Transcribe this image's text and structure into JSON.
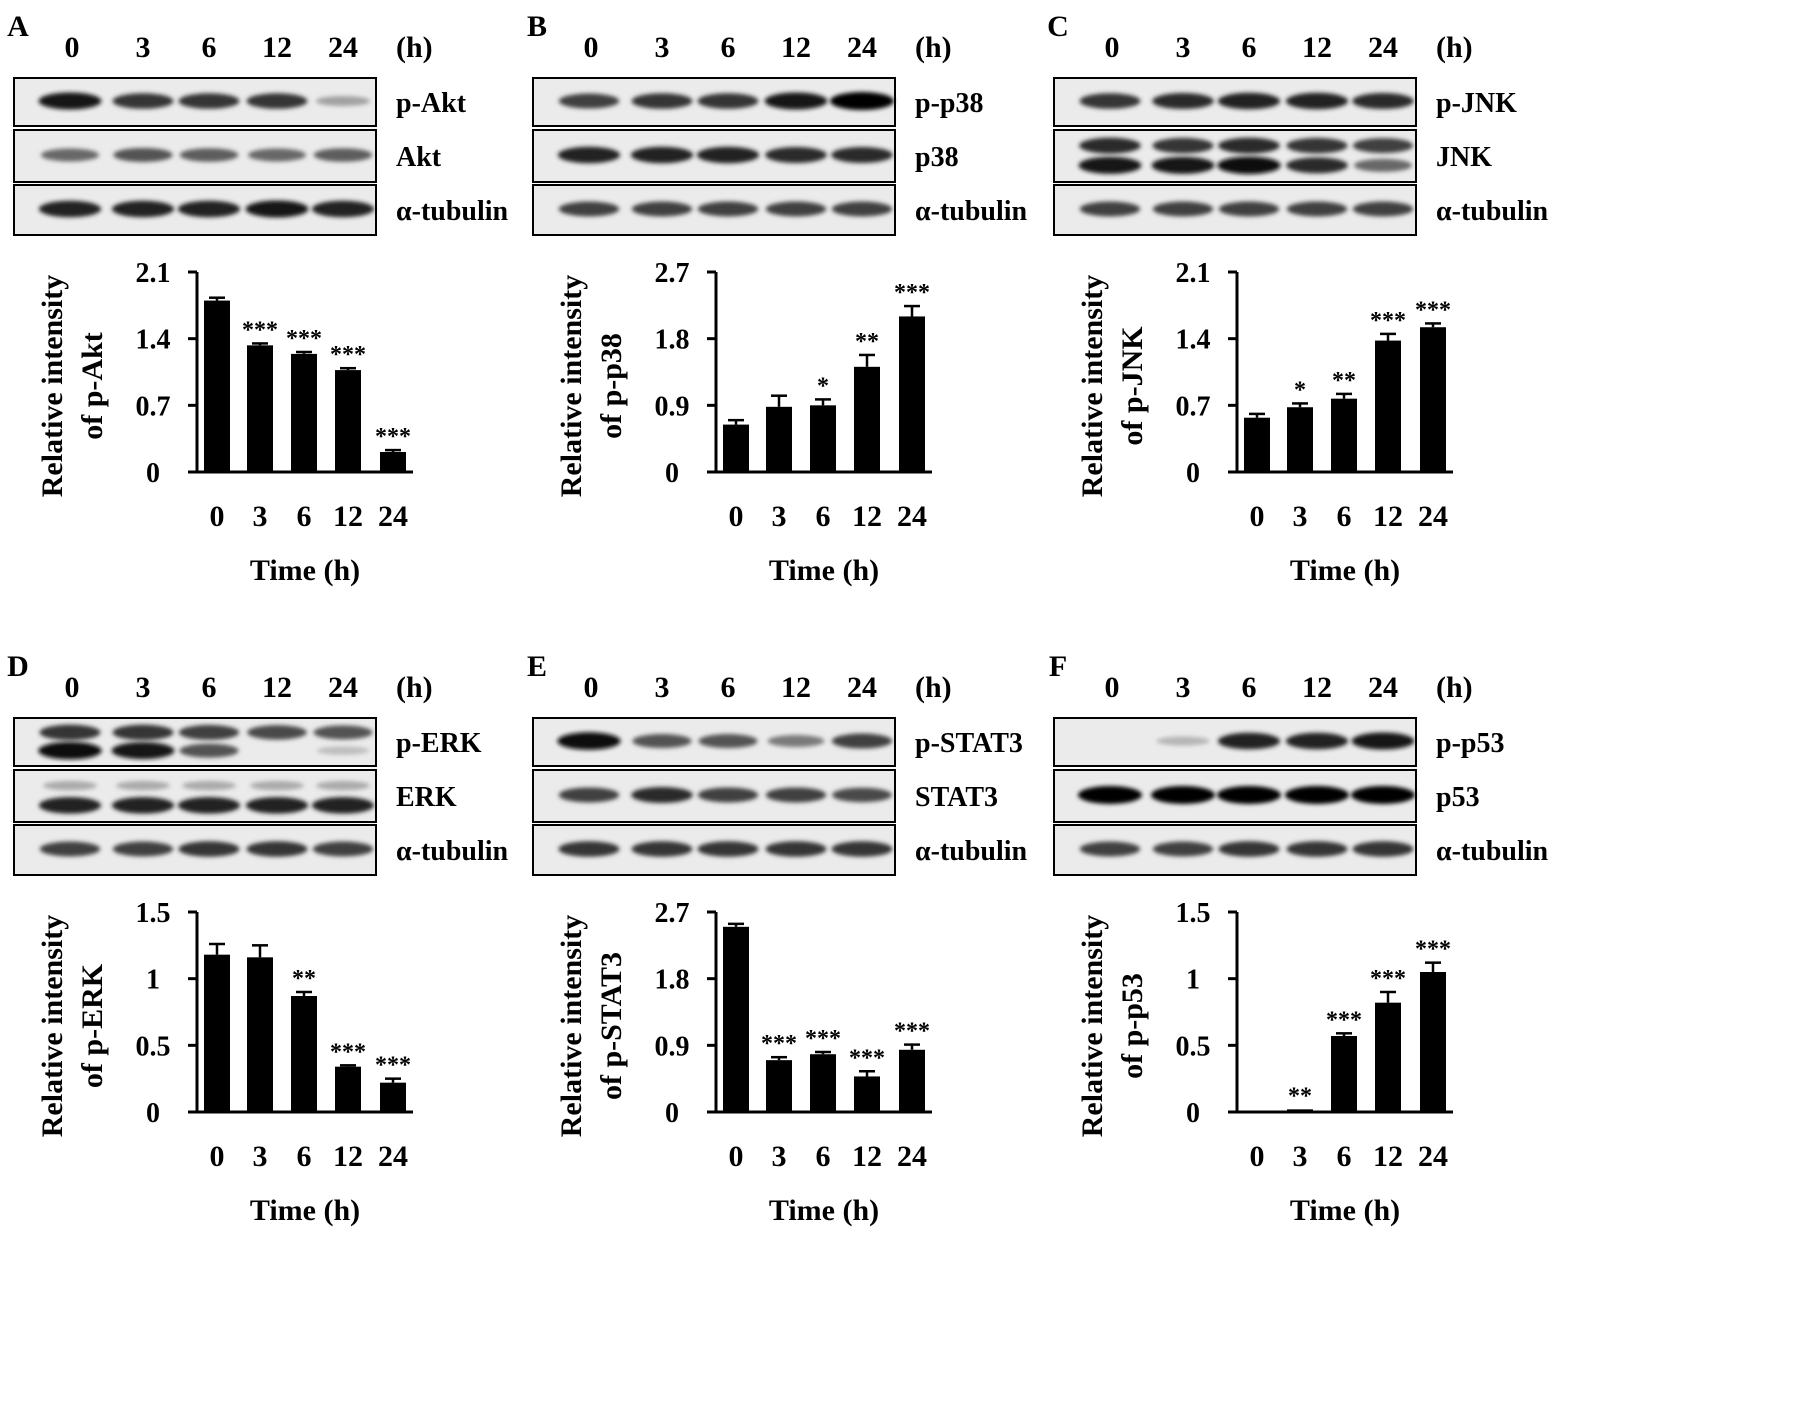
{
  "figure": {
    "panels": [
      {
        "letter": "A",
        "time_points": [
          "0",
          "3",
          "6",
          "12",
          "24"
        ],
        "time_unit": "(h)",
        "blots": [
          {
            "label": "p-Akt",
            "band_rows": [
              {
                "intensity": [
                  0.9,
                  0.75,
                  0.75,
                  0.75,
                  0.2
                ]
              }
            ]
          },
          {
            "label": "Akt",
            "band_rows": [
              {
                "intensity": [
                  0.5,
                  0.6,
                  0.55,
                  0.5,
                  0.55
                ]
              }
            ]
          },
          {
            "label": "α-tubulin",
            "band_rows": [
              {
                "intensity": [
                  0.85,
                  0.85,
                  0.85,
                  0.9,
                  0.85
                ]
              }
            ]
          }
        ],
        "chart_data": {
          "type": "bar",
          "categories": [
            "0",
            "3",
            "6",
            "12",
            "24"
          ],
          "values": [
            1.8,
            1.33,
            1.24,
            1.07,
            0.21
          ],
          "errors": [
            0.03,
            0.02,
            0.02,
            0.02,
            0.02
          ],
          "significance": [
            "",
            "***",
            "***",
            "***",
            "***"
          ],
          "ylim": [
            0,
            2.1
          ],
          "yticks": [
            "0",
            "0.7",
            "1.4",
            "2.1"
          ],
          "ylabel_line1": "Relative intensity",
          "ylabel_line2": "of p-Akt",
          "xlabel": "Time (h)"
        }
      },
      {
        "letter": "B",
        "time_points": [
          "0",
          "3",
          "6",
          "12",
          "24"
        ],
        "time_unit": "(h)",
        "blots": [
          {
            "label": "p-p38",
            "band_rows": [
              {
                "intensity": [
                  0.7,
                  0.75,
                  0.75,
                  0.9,
                  1.0
                ]
              }
            ]
          },
          {
            "label": "p38",
            "band_rows": [
              {
                "intensity": [
                  0.85,
                  0.85,
                  0.85,
                  0.8,
                  0.8
                ]
              }
            ]
          },
          {
            "label": "α-tubulin",
            "band_rows": [
              {
                "intensity": [
                  0.7,
                  0.7,
                  0.7,
                  0.7,
                  0.7
                ]
              }
            ]
          }
        ],
        "chart_data": {
          "type": "bar",
          "categories": [
            "0",
            "3",
            "6",
            "12",
            "24"
          ],
          "values": [
            0.64,
            0.88,
            0.9,
            1.42,
            2.1
          ],
          "errors": [
            0.06,
            0.15,
            0.08,
            0.16,
            0.14
          ],
          "significance": [
            "",
            "",
            "*",
            "**",
            "***"
          ],
          "ylim": [
            0,
            2.7
          ],
          "yticks": [
            "0",
            "0.9",
            "1.8",
            "2.7"
          ],
          "ylabel_line1": "Relative intensity",
          "ylabel_line2": "of p-p38",
          "xlabel": "Time (h)"
        }
      },
      {
        "letter": "C",
        "time_points": [
          "0",
          "3",
          "6",
          "12",
          "24"
        ],
        "time_unit": "(h)",
        "blots": [
          {
            "label": "p-JNK",
            "band_rows": [
              {
                "intensity": [
                  0.75,
                  0.8,
                  0.85,
                  0.85,
                  0.8
                ]
              }
            ]
          },
          {
            "label": "JNK",
            "band_rows": [
              {
                "intensity": [
                  0.8,
                  0.75,
                  0.8,
                  0.75,
                  0.7
                ]
              },
              {
                "intensity": [
                  0.9,
                  0.9,
                  0.95,
                  0.8,
                  0.5
                ]
              }
            ]
          },
          {
            "label": "α-tubulin",
            "band_rows": [
              {
                "intensity": [
                  0.7,
                  0.7,
                  0.7,
                  0.7,
                  0.7
                ]
              }
            ]
          }
        ],
        "chart_data": {
          "type": "bar",
          "categories": [
            "0",
            "3",
            "6",
            "12",
            "24"
          ],
          "values": [
            0.57,
            0.68,
            0.77,
            1.38,
            1.52
          ],
          "errors": [
            0.04,
            0.04,
            0.05,
            0.07,
            0.04
          ],
          "significance": [
            "",
            "*",
            "**",
            "***",
            "***"
          ],
          "ylim": [
            0,
            2.1
          ],
          "yticks": [
            "0",
            "0.7",
            "1.4",
            "2.1"
          ],
          "ylabel_line1": "Relative intensity",
          "ylabel_line2": "of p-JNK",
          "xlabel": "Time (h)"
        }
      },
      {
        "letter": "D",
        "time_points": [
          "0",
          "3",
          "6",
          "12",
          "24"
        ],
        "time_unit": "(h)",
        "blots": [
          {
            "label": "p-ERK",
            "band_rows": [
              {
                "intensity": [
                  0.75,
                  0.75,
                  0.7,
                  0.65,
                  0.6
                ]
              },
              {
                "intensity": [
                  0.95,
                  0.9,
                  0.6,
                  0.0,
                  0.05
                ]
              }
            ]
          },
          {
            "label": "ERK",
            "band_rows": [
              {
                "intensity": [
                  0.15,
                  0.15,
                  0.15,
                  0.15,
                  0.15
                ]
              },
              {
                "intensity": [
                  0.85,
                  0.85,
                  0.85,
                  0.85,
                  0.85
                ]
              }
            ]
          },
          {
            "label": "α-tubulin",
            "band_rows": [
              {
                "intensity": [
                  0.7,
                  0.7,
                  0.75,
                  0.75,
                  0.7
                ]
              }
            ]
          }
        ],
        "chart_data": {
          "type": "bar",
          "categories": [
            "0",
            "3",
            "6",
            "12",
            "24"
          ],
          "values": [
            1.18,
            1.16,
            0.87,
            0.34,
            0.22
          ],
          "errors": [
            0.08,
            0.09,
            0.03,
            0.01,
            0.03
          ],
          "significance": [
            "",
            "",
            "**",
            "***",
            "***"
          ],
          "ylim": [
            0,
            1.5
          ],
          "yticks": [
            "0",
            "0.5",
            "1",
            "1.5"
          ],
          "ylabel_line1": "Relative intensity",
          "ylabel_line2": "of p-ERK",
          "xlabel": "Time (h)"
        }
      },
      {
        "letter": "E",
        "time_points": [
          "0",
          "3",
          "6",
          "12",
          "24"
        ],
        "time_unit": "(h)",
        "blots": [
          {
            "label": "p-STAT3",
            "band_rows": [
              {
                "intensity": [
                  0.95,
                  0.6,
                  0.6,
                  0.4,
                  0.7
                ]
              }
            ]
          },
          {
            "label": "STAT3",
            "band_rows": [
              {
                "intensity": [
                  0.7,
                  0.8,
                  0.7,
                  0.7,
                  0.65
                ]
              }
            ]
          },
          {
            "label": "α-tubulin",
            "band_rows": [
              {
                "intensity": [
                  0.75,
                  0.75,
                  0.75,
                  0.75,
                  0.75
                ]
              }
            ]
          }
        ],
        "chart_data": {
          "type": "bar",
          "categories": [
            "0",
            "3",
            "6",
            "12",
            "24"
          ],
          "values": [
            2.5,
            0.7,
            0.78,
            0.48,
            0.84
          ],
          "errors": [
            0.04,
            0.04,
            0.03,
            0.07,
            0.07
          ],
          "significance": [
            "",
            "***",
            "***",
            "***",
            "***"
          ],
          "ylim": [
            0,
            2.7
          ],
          "yticks": [
            "0",
            "0.9",
            "1.8",
            "2.7"
          ],
          "ylabel_line1": "Relative intensity",
          "ylabel_line2": "of p-STAT3",
          "xlabel": "Time (h)"
        }
      },
      {
        "letter": "F",
        "time_points": [
          "0",
          "3",
          "6",
          "12",
          "24"
        ],
        "time_unit": "(h)",
        "blots": [
          {
            "label": "p-p53",
            "band_rows": [
              {
                "intensity": [
                  0.0,
                  0.1,
                  0.85,
                  0.85,
                  0.9
                ]
              }
            ]
          },
          {
            "label": "p53",
            "band_rows": [
              {
                "intensity": [
                  1.0,
                  1.0,
                  1.0,
                  1.0,
                  1.0
                ]
              }
            ]
          },
          {
            "label": "α-tubulin",
            "band_rows": [
              {
                "intensity": [
                  0.7,
                  0.7,
                  0.75,
                  0.75,
                  0.75
                ]
              }
            ]
          }
        ],
        "chart_data": {
          "type": "bar",
          "categories": [
            "0",
            "3",
            "6",
            "12",
            "24"
          ],
          "values": [
            0.0,
            0.02,
            0.57,
            0.82,
            1.05
          ],
          "errors": [
            0.0,
            0.0,
            0.02,
            0.08,
            0.07
          ],
          "significance": [
            "",
            "**",
            "***",
            "***",
            "***"
          ],
          "ylim": [
            0,
            1.5
          ],
          "yticks": [
            "0",
            "0.5",
            "1",
            "1.5"
          ],
          "ylabel_line1": "Relative intensity",
          "ylabel_line2": "of p-p53",
          "xlabel": "Time (h)"
        }
      }
    ]
  }
}
